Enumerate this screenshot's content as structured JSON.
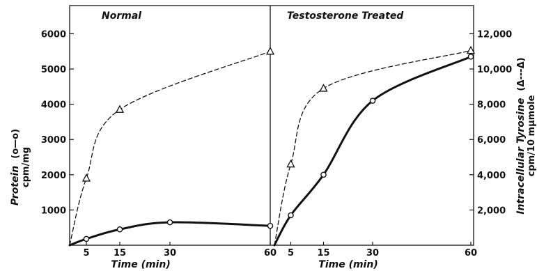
{
  "chart_data": {
    "type": "line",
    "left_axis": {
      "label": "Protein",
      "legend_symbol": "(o—o)",
      "unit": "cpm/mg",
      "ylim": [
        0,
        6800
      ],
      "ticks": [
        "1000",
        "2000",
        "3000",
        "4000",
        "5000",
        "6000"
      ]
    },
    "right_axis": {
      "label": "Intracellular Tyrosine",
      "legend_symbol": "(Δ---Δ)",
      "unit": "cpm/10 mµmole",
      "ylim": [
        0,
        13600
      ],
      "ticks": [
        "2,000",
        "4,000",
        "6,000",
        "8,000",
        "10,000",
        "12,000"
      ]
    },
    "panels": [
      {
        "title": "Normal",
        "xlabel": "Time (min)",
        "x_ticks": [
          "5",
          "15",
          "30",
          "60"
        ],
        "series": [
          {
            "marker": "circle",
            "line": "solid",
            "axis": "left",
            "x": [
              0,
              5,
              15,
              30,
              60
            ],
            "y": [
              0,
              180,
              450,
              650,
              550
            ]
          },
          {
            "marker": "triangle",
            "line": "dashed",
            "axis": "right",
            "x": [
              0,
              5,
              15,
              60
            ],
            "y": [
              0,
              3800,
              7700,
              11000
            ]
          }
        ]
      },
      {
        "title": "Testosterone Treated",
        "xlabel": "Time (min)",
        "x_ticks": [
          "5",
          "15",
          "30",
          "60"
        ],
        "series": [
          {
            "marker": "circle",
            "line": "solid",
            "axis": "left",
            "x": [
              0,
              5,
              15,
              30,
              60
            ],
            "y": [
              0,
              850,
              2000,
              4100,
              5350
            ]
          },
          {
            "marker": "triangle",
            "line": "dashed",
            "axis": "right",
            "x": [
              0,
              5,
              15,
              60
            ],
            "y": [
              0,
              4600,
              8900,
              11050
            ]
          }
        ]
      }
    ]
  }
}
